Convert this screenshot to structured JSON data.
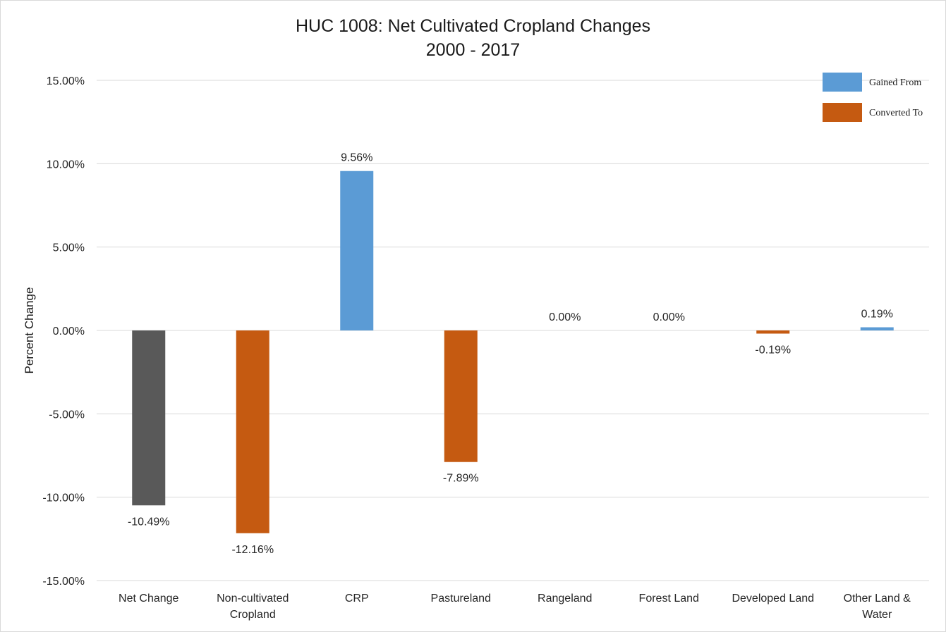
{
  "chart_data": {
    "type": "bar",
    "title": [
      "HUC 1008: Net Cultivated Cropland Changes",
      "2000 - 2017"
    ],
    "ylabel": "Percent Change",
    "ylim": [
      -15,
      15
    ],
    "yticks": [
      15,
      10,
      5,
      0,
      -5,
      -10,
      -15
    ],
    "ytick_labels": [
      "15.00%",
      "10.00%",
      "5.00%",
      "0.00%",
      "-5.00%",
      "-10.00%",
      "-15.00%"
    ],
    "grid": true,
    "legend_position": "top-right",
    "legend": [
      {
        "label": "Gained From",
        "color": "#5b9bd5"
      },
      {
        "label": "Converted To",
        "color": "#c55a11"
      }
    ],
    "categories": [
      [
        "Net Change"
      ],
      [
        "Non-cultivated",
        "Cropland"
      ],
      [
        "CRP"
      ],
      [
        "Pastureland"
      ],
      [
        "Rangeland"
      ],
      [
        "Forest Land"
      ],
      [
        "Developed Land"
      ],
      [
        "Other Land &",
        "Water"
      ]
    ],
    "values": [
      -10.49,
      -12.16,
      9.56,
      -7.89,
      0.0,
      0.0,
      -0.19,
      0.19
    ],
    "data_labels": [
      "-10.49%",
      "-12.16%",
      "9.56%",
      "-7.89%",
      "0.00%",
      "0.00%",
      "-0.19%",
      "0.19%"
    ],
    "colors": [
      "#595959",
      "#c55a11",
      "#5b9bd5",
      "#c55a11",
      "#c55a11",
      "#c55a11",
      "#c55a11",
      "#5b9bd5"
    ]
  }
}
